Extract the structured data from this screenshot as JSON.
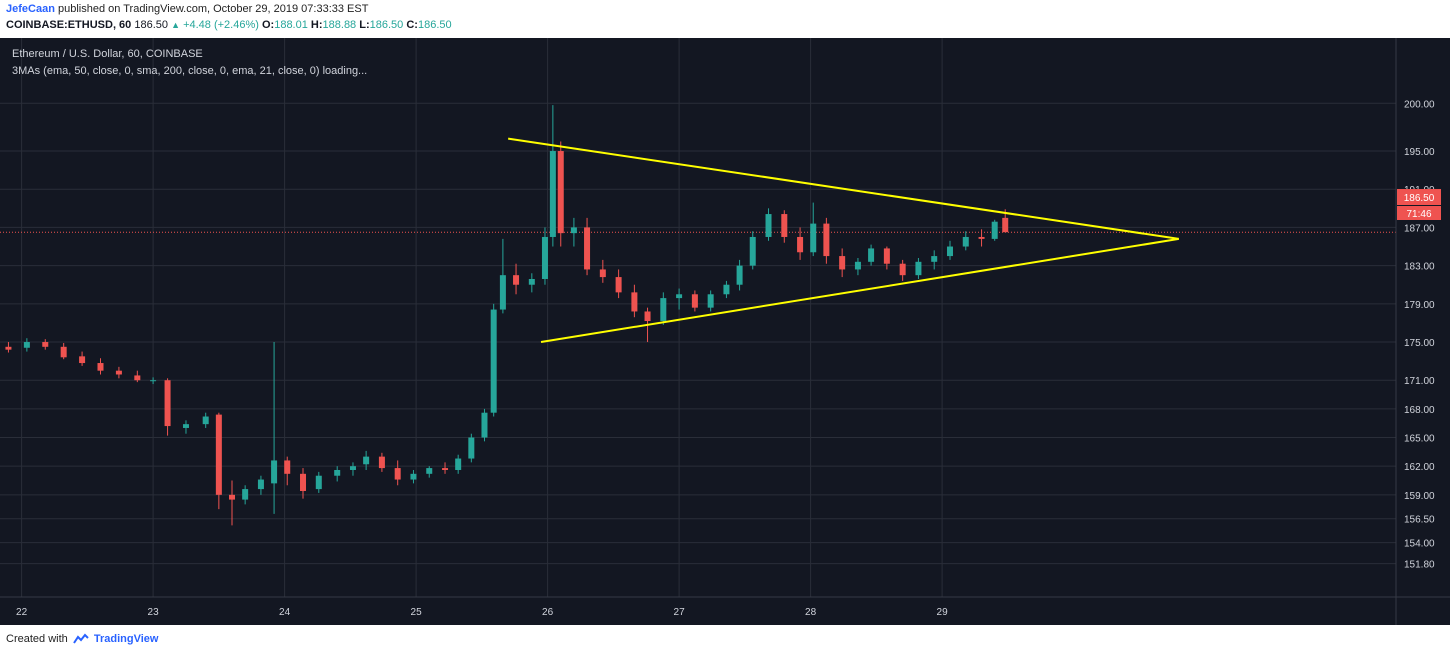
{
  "header": {
    "author": "JefeCaan",
    "published_text": "published on TradingView.com, October 29, 2019 07:33:33 EST",
    "symbol": "COINBASE:ETHUSD, 60",
    "last": "186.50",
    "change": "+4.48 (+2.46%)",
    "o_label": "O:",
    "o_value": "188.01",
    "h_label": "H:",
    "h_value": "188.88",
    "l_label": "L:",
    "l_value": "186.50",
    "c_label": "C:",
    "c_value": "186.50"
  },
  "chart_legend": {
    "title": "Ethereum / U.S. Dollar, 60, COINBASE",
    "indicator": "3MAs (ema, 50, close, 0, sma, 200, close, 0, ema, 21, close, 0) loading..."
  },
  "price_tags": {
    "last_price": "186.50",
    "countdown": "71:46"
  },
  "footer": {
    "created_with": "Created with",
    "brand": "TradingView"
  },
  "colors": {
    "background": "#131722",
    "grid": "#2a2e39",
    "up": "#26a69a",
    "down": "#ef5350",
    "trendline": "#ffff00",
    "price_line": "#ef5350",
    "axis_text": "#d1d4dc"
  },
  "chart_data": {
    "type": "candlestick",
    "title": "Ethereum / U.S. Dollar, 60, COINBASE",
    "xlabel": "",
    "ylabel": "",
    "x_ticks": [
      "22",
      "23",
      "24",
      "25",
      "26",
      "27",
      "28",
      "29"
    ],
    "y_ticks": [
      "200.00",
      "195.00",
      "191.00",
      "187.00",
      "183.00",
      "179.00",
      "175.00",
      "171.00",
      "168.00",
      "165.00",
      "162.00",
      "159.00",
      "156.50",
      "154.00",
      "151.80"
    ],
    "y_axis_side": "right",
    "grid": true,
    "candles": [
      {
        "day": 21.9,
        "o": 174.5,
        "h": 175.0,
        "l": 173.9,
        "c": 174.2
      },
      {
        "day": 22.04,
        "o": 174.4,
        "h": 175.4,
        "l": 174.0,
        "c": 175.0
      },
      {
        "day": 22.18,
        "o": 175.0,
        "h": 175.3,
        "l": 174.2,
        "c": 174.5
      },
      {
        "day": 22.32,
        "o": 174.5,
        "h": 174.9,
        "l": 173.2,
        "c": 173.4
      },
      {
        "day": 22.46,
        "o": 173.5,
        "h": 174.0,
        "l": 172.5,
        "c": 172.8
      },
      {
        "day": 22.6,
        "o": 172.8,
        "h": 173.3,
        "l": 171.6,
        "c": 172.0
      },
      {
        "day": 22.74,
        "o": 172.0,
        "h": 172.4,
        "l": 171.2,
        "c": 171.6
      },
      {
        "day": 22.88,
        "o": 171.5,
        "h": 172.0,
        "l": 170.8,
        "c": 171.0
      },
      {
        "day": 23.0,
        "o": 171.0,
        "h": 171.3,
        "l": 170.6,
        "c": 171.0
      },
      {
        "day": 23.11,
        "o": 171.0,
        "h": 171.2,
        "l": 165.2,
        "c": 166.2
      },
      {
        "day": 23.25,
        "o": 166.0,
        "h": 166.8,
        "l": 165.4,
        "c": 166.4
      },
      {
        "day": 23.4,
        "o": 166.4,
        "h": 167.6,
        "l": 166.0,
        "c": 167.2
      },
      {
        "day": 23.5,
        "o": 167.4,
        "h": 167.6,
        "l": 157.5,
        "c": 159.0
      },
      {
        "day": 23.6,
        "o": 159.0,
        "h": 160.5,
        "l": 155.8,
        "c": 158.5
      },
      {
        "day": 23.7,
        "o": 158.5,
        "h": 160.0,
        "l": 158.0,
        "c": 159.6
      },
      {
        "day": 23.82,
        "o": 159.6,
        "h": 161.0,
        "l": 159.0,
        "c": 160.6
      },
      {
        "day": 23.92,
        "o": 160.2,
        "h": 175.0,
        "l": 157.0,
        "c": 162.6
      },
      {
        "day": 24.02,
        "o": 162.6,
        "h": 163.0,
        "l": 160.0,
        "c": 161.2
      },
      {
        "day": 24.14,
        "o": 161.2,
        "h": 161.8,
        "l": 158.6,
        "c": 159.4
      },
      {
        "day": 24.26,
        "o": 159.6,
        "h": 161.4,
        "l": 159.2,
        "c": 161.0
      },
      {
        "day": 24.4,
        "o": 161.0,
        "h": 162.0,
        "l": 160.4,
        "c": 161.6
      },
      {
        "day": 24.52,
        "o": 161.6,
        "h": 162.4,
        "l": 161.0,
        "c": 162.0
      },
      {
        "day": 24.62,
        "o": 162.2,
        "h": 163.6,
        "l": 161.6,
        "c": 163.0
      },
      {
        "day": 24.74,
        "o": 163.0,
        "h": 163.4,
        "l": 161.4,
        "c": 161.8
      },
      {
        "day": 24.86,
        "o": 161.8,
        "h": 162.6,
        "l": 160.0,
        "c": 160.6
      },
      {
        "day": 24.98,
        "o": 160.6,
        "h": 161.6,
        "l": 160.2,
        "c": 161.2
      },
      {
        "day": 25.1,
        "o": 161.2,
        "h": 162.0,
        "l": 160.8,
        "c": 161.8
      },
      {
        "day": 25.22,
        "o": 161.8,
        "h": 162.4,
        "l": 161.2,
        "c": 161.6
      },
      {
        "day": 25.32,
        "o": 161.6,
        "h": 163.2,
        "l": 161.2,
        "c": 162.8
      },
      {
        "day": 25.42,
        "o": 162.8,
        "h": 165.4,
        "l": 162.4,
        "c": 165.0
      },
      {
        "day": 25.52,
        "o": 165.0,
        "h": 168.0,
        "l": 164.6,
        "c": 167.6
      },
      {
        "day": 25.59,
        "o": 167.6,
        "h": 179.0,
        "l": 167.2,
        "c": 178.4
      },
      {
        "day": 25.66,
        "o": 178.4,
        "h": 185.8,
        "l": 178.0,
        "c": 182.0
      },
      {
        "day": 25.76,
        "o": 182.0,
        "h": 183.2,
        "l": 180.0,
        "c": 181.0
      },
      {
        "day": 25.88,
        "o": 181.0,
        "h": 182.2,
        "l": 180.2,
        "c": 181.6
      },
      {
        "day": 25.98,
        "o": 181.6,
        "h": 187.0,
        "l": 181.0,
        "c": 186.0
      },
      {
        "day": 26.04,
        "o": 186.0,
        "h": 199.8,
        "l": 185.0,
        "c": 195.0
      },
      {
        "day": 26.1,
        "o": 195.0,
        "h": 196.0,
        "l": 185.0,
        "c": 186.4
      },
      {
        "day": 26.2,
        "o": 186.4,
        "h": 188.0,
        "l": 185.0,
        "c": 187.0
      },
      {
        "day": 26.3,
        "o": 187.0,
        "h": 188.0,
        "l": 182.0,
        "c": 182.6
      },
      {
        "day": 26.42,
        "o": 182.6,
        "h": 183.6,
        "l": 181.2,
        "c": 181.8
      },
      {
        "day": 26.54,
        "o": 181.8,
        "h": 182.6,
        "l": 179.6,
        "c": 180.2
      },
      {
        "day": 26.66,
        "o": 180.2,
        "h": 181.0,
        "l": 177.6,
        "c": 178.2
      },
      {
        "day": 26.76,
        "o": 178.2,
        "h": 178.6,
        "l": 175.0,
        "c": 177.2
      },
      {
        "day": 26.88,
        "o": 177.2,
        "h": 180.2,
        "l": 176.8,
        "c": 179.6
      },
      {
        "day": 27.0,
        "o": 179.6,
        "h": 180.6,
        "l": 178.4,
        "c": 180.0
      },
      {
        "day": 27.12,
        "o": 180.0,
        "h": 180.4,
        "l": 178.2,
        "c": 178.6
      },
      {
        "day": 27.24,
        "o": 178.6,
        "h": 180.4,
        "l": 178.2,
        "c": 180.0
      },
      {
        "day": 27.36,
        "o": 180.0,
        "h": 181.4,
        "l": 179.6,
        "c": 181.0
      },
      {
        "day": 27.46,
        "o": 181.0,
        "h": 183.6,
        "l": 180.4,
        "c": 183.0
      },
      {
        "day": 27.56,
        "o": 183.0,
        "h": 186.6,
        "l": 182.6,
        "c": 186.0
      },
      {
        "day": 27.68,
        "o": 186.0,
        "h": 189.0,
        "l": 185.6,
        "c": 188.4
      },
      {
        "day": 27.8,
        "o": 188.4,
        "h": 188.8,
        "l": 185.4,
        "c": 186.0
      },
      {
        "day": 27.92,
        "o": 186.0,
        "h": 187.0,
        "l": 183.6,
        "c": 184.4
      },
      {
        "day": 28.02,
        "o": 184.4,
        "h": 189.6,
        "l": 184.0,
        "c": 187.4
      },
      {
        "day": 28.12,
        "o": 187.4,
        "h": 188.0,
        "l": 183.2,
        "c": 184.0
      },
      {
        "day": 28.24,
        "o": 184.0,
        "h": 184.8,
        "l": 181.8,
        "c": 182.6
      },
      {
        "day": 28.36,
        "o": 182.6,
        "h": 183.8,
        "l": 182.0,
        "c": 183.4
      },
      {
        "day": 28.46,
        "o": 183.4,
        "h": 185.2,
        "l": 183.0,
        "c": 184.8
      },
      {
        "day": 28.58,
        "o": 184.8,
        "h": 185.0,
        "l": 182.6,
        "c": 183.2
      },
      {
        "day": 28.7,
        "o": 183.2,
        "h": 183.6,
        "l": 181.4,
        "c": 182.0
      },
      {
        "day": 28.82,
        "o": 182.0,
        "h": 183.8,
        "l": 181.6,
        "c": 183.4
      },
      {
        "day": 28.94,
        "o": 183.4,
        "h": 184.6,
        "l": 182.6,
        "c": 184.0
      },
      {
        "day": 29.06,
        "o": 184.0,
        "h": 185.6,
        "l": 183.6,
        "c": 185.0
      },
      {
        "day": 29.18,
        "o": 185.0,
        "h": 186.6,
        "l": 184.6,
        "c": 186.0
      },
      {
        "day": 29.3,
        "o": 186.0,
        "h": 186.8,
        "l": 185.0,
        "c": 185.8
      },
      {
        "day": 29.4,
        "o": 185.8,
        "h": 187.8,
        "l": 185.6,
        "c": 187.6
      },
      {
        "day": 29.48,
        "o": 188.0,
        "h": 188.9,
        "l": 186.5,
        "c": 186.5
      }
    ],
    "trendlines": [
      {
        "name": "upper",
        "from": {
          "day": 25.7,
          "price": 196.3
        },
        "to": {
          "day": 30.8,
          "price": 185.8
        }
      },
      {
        "name": "lower",
        "from": {
          "day": 25.95,
          "price": 175.0
        },
        "to": {
          "day": 30.8,
          "price": 185.8
        }
      }
    ],
    "last_price_line": 186.5
  }
}
